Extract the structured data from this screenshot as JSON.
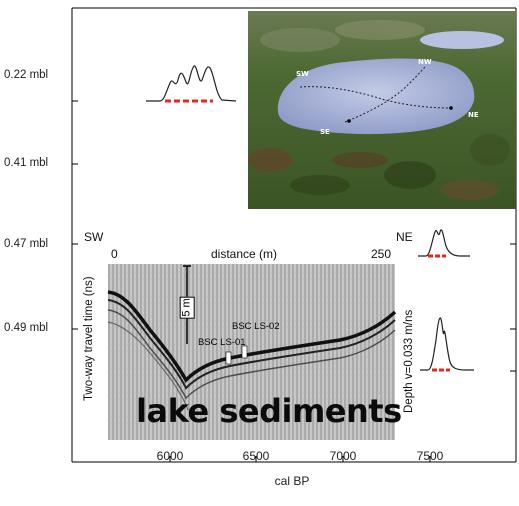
{
  "y_labels": [
    "0.22 mbl",
    "0.41 mbl",
    "0.47 mbl",
    "0.49 mbl"
  ],
  "x_axis": {
    "ticks": [
      "6000",
      "6500",
      "7000",
      "7500"
    ],
    "label": "cal BP"
  },
  "photo": {
    "labels": {
      "sw": "SW",
      "nw": "NW",
      "ne": "NE",
      "se": "SE"
    }
  },
  "gpr": {
    "dir_left": "SW",
    "dir_right": "NE",
    "distance_start": "0",
    "distance_end": "250",
    "distance_label": "distance (m)",
    "y_label": "Two-way travel time (ns)",
    "y_label_right": "Depth v=0.033 m/ns",
    "scale_bar": "5 m",
    "core_1": "BSC LS-01",
    "core_2": "BSC LS-02",
    "overlay": "lake sediments"
  },
  "colors": {
    "axis": "#000000",
    "pdf_line": "#222222",
    "pdf_range": "#e8251c",
    "photo_lake": "#a9b4d8",
    "photo_veg": "#4f6a2e"
  }
}
